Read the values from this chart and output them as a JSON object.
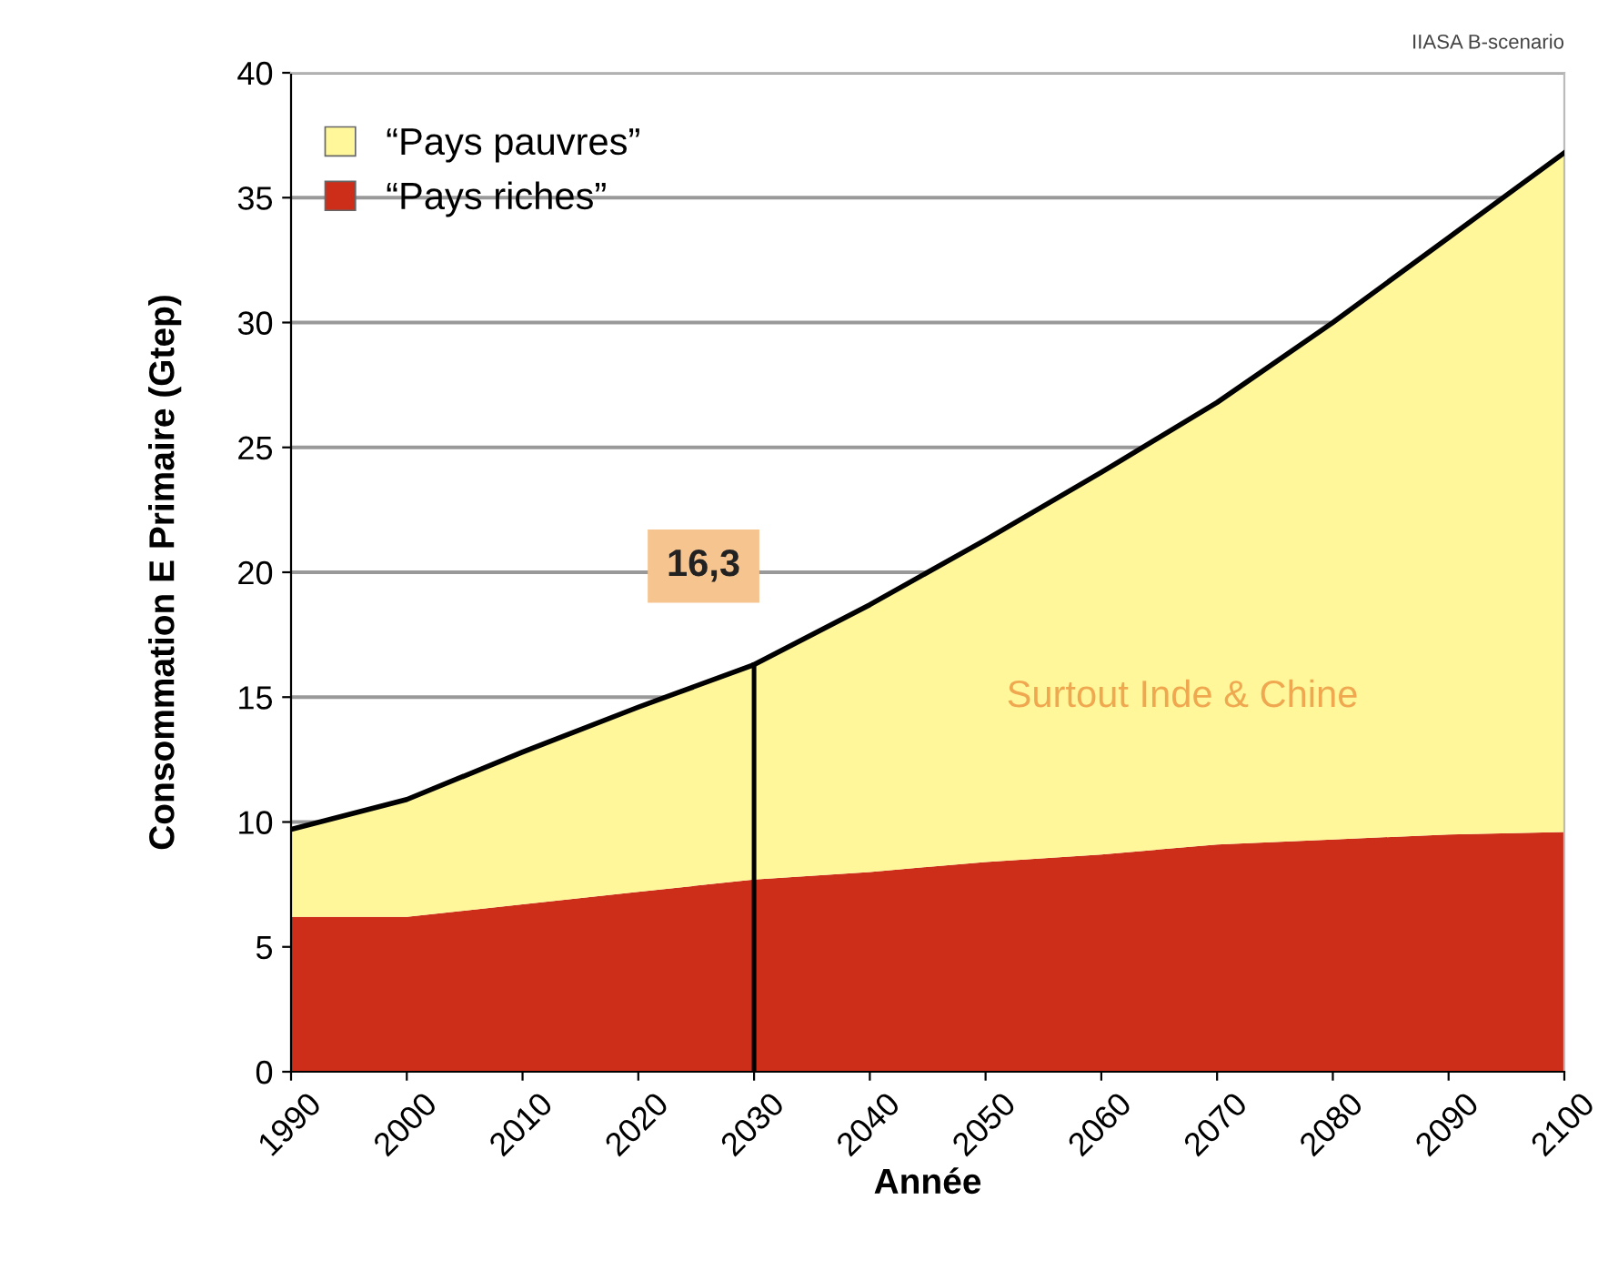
{
  "chart_data": {
    "type": "area",
    "stacked": true,
    "xlabel": "Année",
    "ylabel": "Consommation E Primaire (Gtep)",
    "x": [
      1990,
      2000,
      2010,
      2020,
      2030,
      2040,
      2050,
      2060,
      2070,
      2080,
      2090,
      2100
    ],
    "series": [
      {
        "name": "“Pays riches”",
        "color": "#cc2e1a",
        "values": [
          6.2,
          6.2,
          6.7,
          7.2,
          7.7,
          8.0,
          8.4,
          8.7,
          9.1,
          9.3,
          9.5,
          9.6
        ]
      },
      {
        "name": "“Pays pauvres”",
        "color": "#fff799",
        "values": [
          3.5,
          4.7,
          6.1,
          7.4,
          8.6,
          10.7,
          12.9,
          15.3,
          17.7,
          20.7,
          23.9,
          27.2
        ]
      },
      {
        "type": "line",
        "color": "#000000",
        "x": [
          2030,
          2030
        ],
        "values": [
          0,
          16.3
        ]
      }
    ],
    "xlim": [
      1990,
      2100
    ],
    "xticks": [
      1990,
      2000,
      2010,
      2020,
      2030,
      2040,
      2050,
      2060,
      2070,
      2080,
      2090,
      2100
    ],
    "ylim": [
      0,
      40
    ],
    "yticks": [
      0,
      5,
      10,
      15,
      20,
      25,
      30,
      35,
      40
    ],
    "grid": "y",
    "legend": "top left",
    "annotations": [
      {
        "text": "16,3",
        "x": 2030,
        "y": 16.3
      },
      "Surtout Inde & Chine",
      "IIASA B-scenario"
    ]
  }
}
